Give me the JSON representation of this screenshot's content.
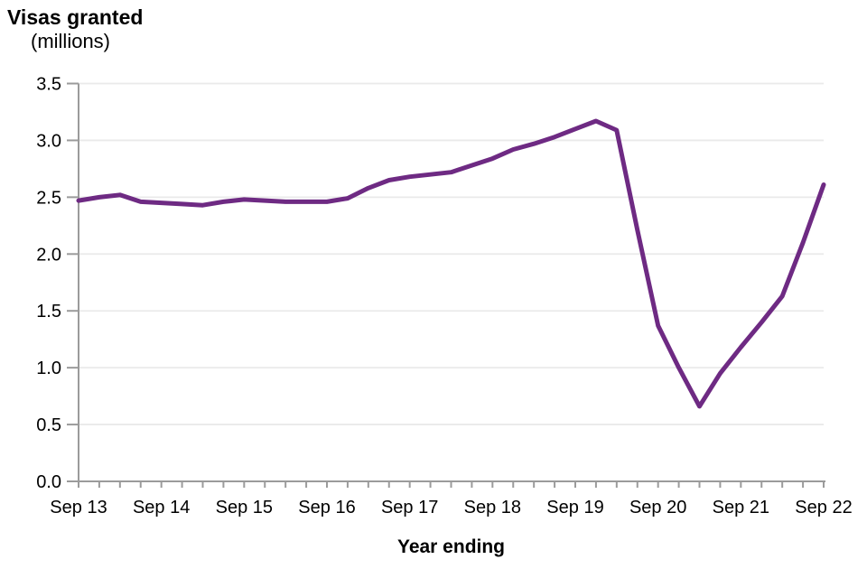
{
  "chart_data": {
    "type": "line",
    "title": "Visas granted",
    "subtitle": "(millions)",
    "xlabel": "Year ending",
    "ylabel": "Visas granted (millions)",
    "series_name": "Visas granted",
    "grid": "horizontal",
    "legend": "none",
    "ylim": [
      0.0,
      3.5
    ],
    "ytick_step": 0.5,
    "ytick_labels": [
      "3.5",
      "3.0",
      "2.5",
      "2.0",
      "1.5",
      "1.0",
      "0.5",
      "0.0"
    ],
    "x_tick_labels": [
      "Sep 13",
      "Sep 14",
      "Sep 15",
      "Sep 16",
      "Sep 17",
      "Sep 18",
      "Sep 19",
      "Sep 20",
      "Sep 21",
      "Sep 22"
    ],
    "x": [
      "Sep 2013",
      "Dec 2013",
      "Mar 2014",
      "Jun 2014",
      "Sep 2014",
      "Dec 2014",
      "Mar 2015",
      "Jun 2015",
      "Sep 2015",
      "Dec 2015",
      "Mar 2016",
      "Jun 2016",
      "Sep 2016",
      "Dec 2016",
      "Mar 2017",
      "Jun 2017",
      "Sep 2017",
      "Dec 2017",
      "Mar 2018",
      "Jun 2018",
      "Sep 2018",
      "Dec 2018",
      "Mar 2019",
      "Jun 2019",
      "Sep 2019",
      "Dec 2019",
      "Mar 2020",
      "Jun 2020",
      "Sep 2020",
      "Dec 2020",
      "Mar 2021",
      "Jun 2021",
      "Sep 2021",
      "Dec 2021",
      "Mar 2022",
      "Jun 2022",
      "Sep 2022"
    ],
    "values": [
      2.47,
      2.5,
      2.52,
      2.46,
      2.45,
      2.44,
      2.43,
      2.46,
      2.48,
      2.47,
      2.46,
      2.46,
      2.46,
      2.49,
      2.58,
      2.65,
      2.68,
      2.7,
      2.72,
      2.78,
      2.84,
      2.92,
      2.97,
      3.03,
      3.1,
      3.17,
      3.09,
      2.21,
      1.37,
      1.0,
      0.66,
      0.95,
      1.18,
      1.4,
      1.63,
      2.1,
      2.61
    ]
  },
  "colors": {
    "line": "#6e2a83",
    "grid": "#eaeaea",
    "axis": "#9b9b9b",
    "text": "#000000"
  }
}
